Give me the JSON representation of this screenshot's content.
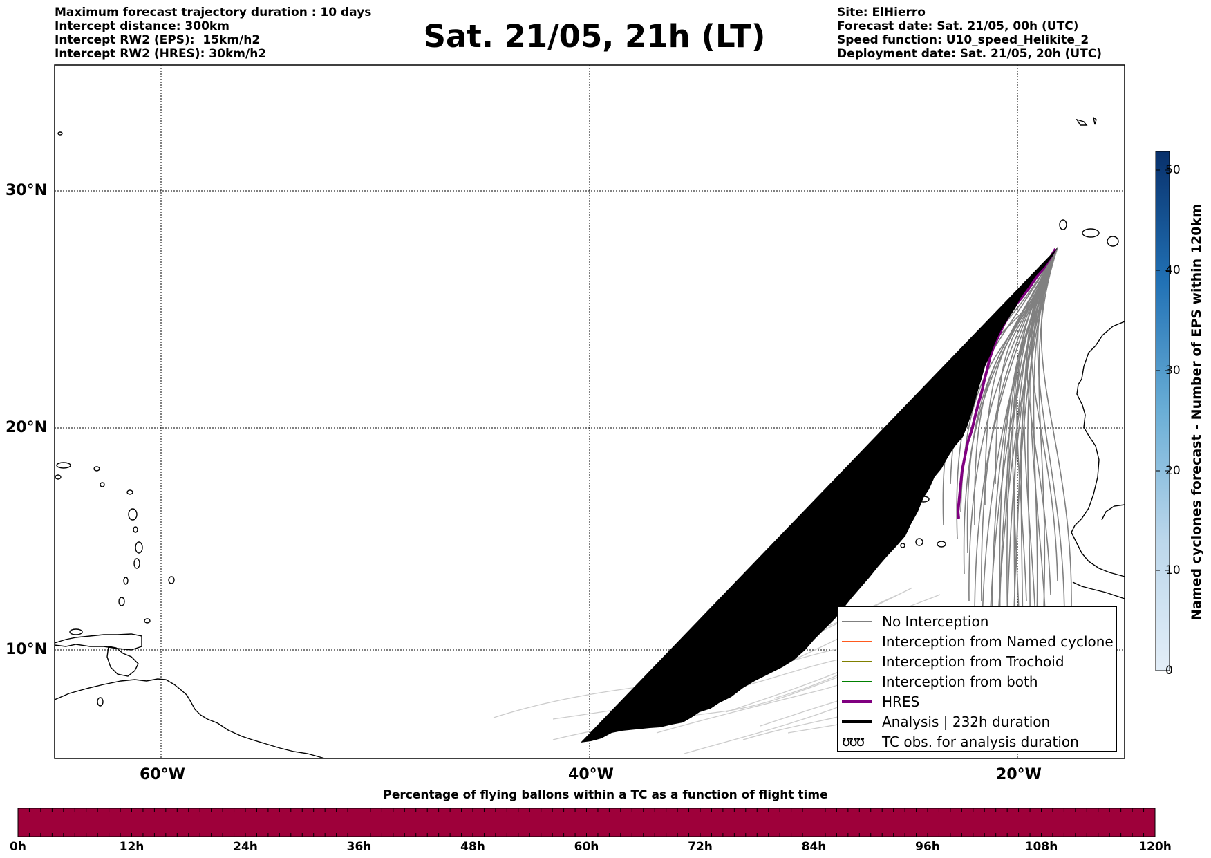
{
  "header": {
    "left": [
      "Maximum forecast trajectory duration : 10 days",
      "Intercept distance: 300km",
      "Intercept RW2 (EPS):  15km/h2",
      "Intercept RW2 (HRES): 30km/h2"
    ],
    "right": [
      "Site: ElHierro",
      "Forecast date: Sat. 21/05, 00h (UTC)",
      "Speed function: U10_speed_Helikite_2",
      "Deployment date: Sat. 21/05, 20h (UTC)"
    ],
    "title": "Sat. 21/05, 21h (LT)"
  },
  "map": {
    "lat_labels": [
      "30°N",
      "20°N",
      "10°N"
    ],
    "lon_labels": [
      "60°W",
      "40°W",
      "20°W"
    ],
    "colors": {
      "no_interception": "#808080",
      "named_cyclone": "#ff5a1e",
      "trochoid": "#808000",
      "both": "#008000",
      "hres": "#800080",
      "analysis": "#000000",
      "faint_tracks": "#cccccc"
    }
  },
  "legend": {
    "items": [
      {
        "label": "No Interception",
        "color": "#808080",
        "style": "thin"
      },
      {
        "label": "Interception from Named cyclone",
        "color": "#ff5a1e",
        "style": "thin"
      },
      {
        "label": "Interception from Trochoid",
        "color": "#808000",
        "style": "thin"
      },
      {
        "label": "Interception from both",
        "color": "#008000",
        "style": "thin"
      },
      {
        "label": "HRES",
        "color": "#800080",
        "style": "thick"
      },
      {
        "label": "Analysis | 232h duration",
        "color": "#000000",
        "style": "thick"
      },
      {
        "label": "TC obs. for analysis duration",
        "color": "#000000",
        "style": "obs",
        "icon": "storm-symbols-icon",
        "glyphs": "ʊʊʊ"
      }
    ]
  },
  "right_colorbar": {
    "label": "Named cyclones forecast - Number of EPS within 120km",
    "ticks": [
      "50",
      "40",
      "30",
      "20",
      "10",
      "0"
    ],
    "color_light": "#e3eef8",
    "color_dark": "#08306b"
  },
  "bottom_colorbar": {
    "title": "Percentage of flying ballons within a TC as a function of flight time",
    "ticks": [
      "0h",
      "12h",
      "24h",
      "36h",
      "48h",
      "60h",
      "72h",
      "84h",
      "96h",
      "108h",
      "120h"
    ],
    "color": "#9e003a"
  }
}
